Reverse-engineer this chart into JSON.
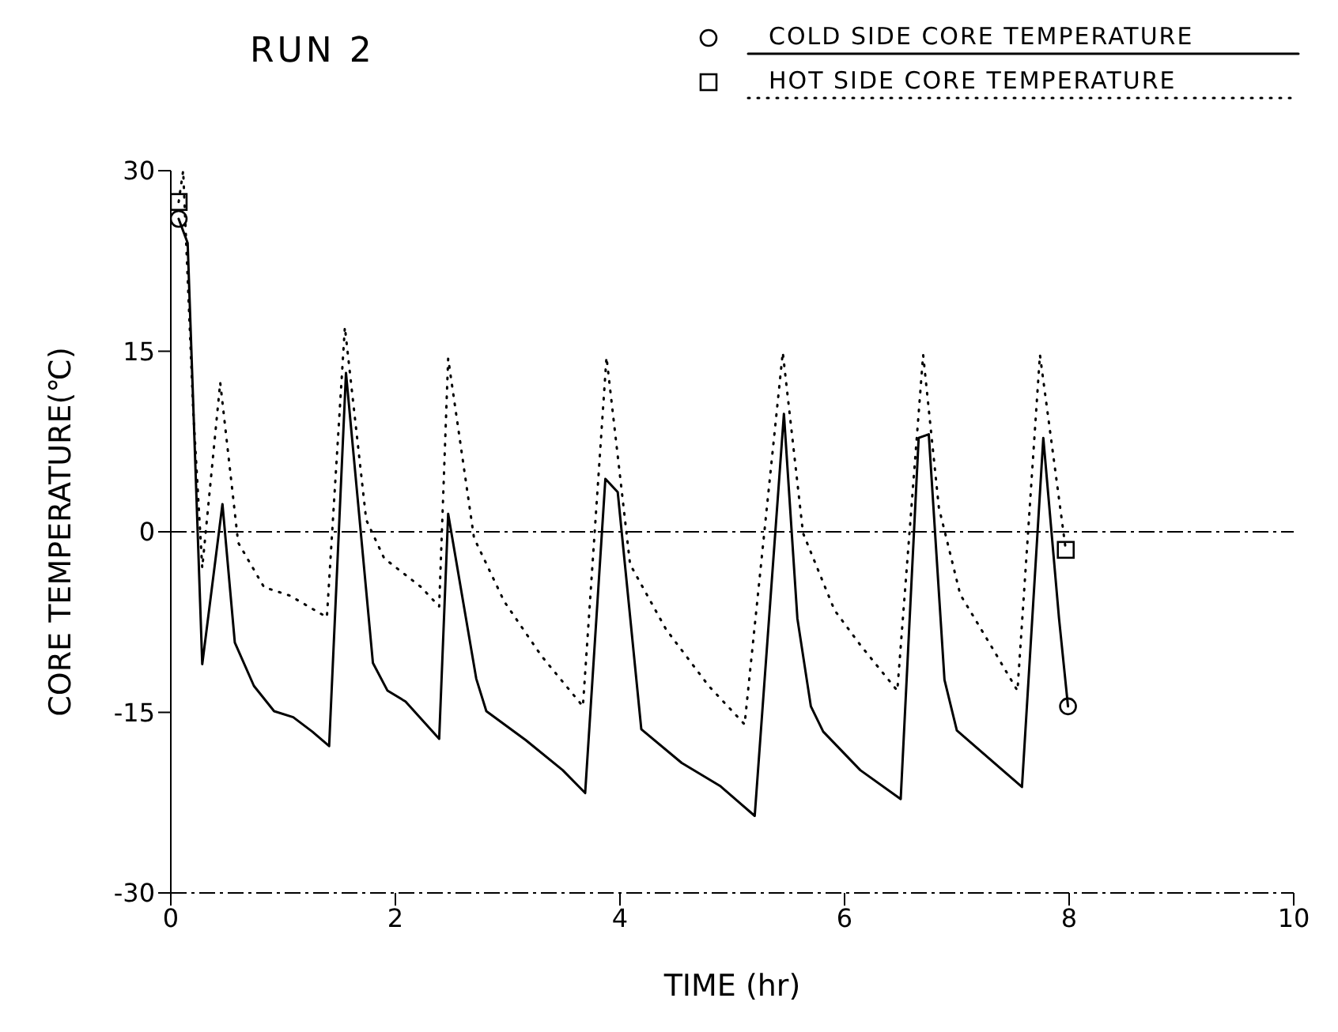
{
  "chart_data": {
    "type": "line",
    "title": "RUN 2",
    "xlabel": "TIME (hr)",
    "ylabel": "CORE TEMPERATURE(℃)",
    "xlim": [
      0,
      10
    ],
    "xticks": [
      0,
      2,
      4,
      6,
      8,
      10
    ],
    "ylim": [
      -30,
      30
    ],
    "yticks": [
      -30,
      -15,
      0,
      15,
      30
    ],
    "legend": "top right",
    "ref_lines": [
      {
        "axis": "y",
        "value": 0,
        "line_style": "dashed",
        "color": "#000000"
      }
    ],
    "series": [
      {
        "name": "COLD SIDE CORE TEMPERATURE",
        "color": "#000000",
        "line_style": "solid",
        "x": [
          0.07,
          0.15,
          0.28,
          0.46,
          0.57,
          0.74,
          0.92,
          1.09,
          1.26,
          1.41,
          1.56,
          1.8,
          1.93,
          2.09,
          2.39,
          2.47,
          2.72,
          2.81,
          3.16,
          3.49,
          3.69,
          3.87,
          3.98,
          4.19,
          4.55,
          4.89,
          5.2,
          5.46,
          5.58,
          5.7,
          5.81,
          6.14,
          6.5,
          6.66,
          6.75,
          6.89,
          7.0,
          7.58,
          7.77,
          7.91,
          7.99
        ],
        "values": [
          26,
          24,
          -11,
          2.3,
          -9.2,
          -12.8,
          -14.9,
          -15.4,
          -16.6,
          -17.8,
          13.2,
          -10.9,
          -13.2,
          -14.1,
          -17.2,
          1.5,
          -12.2,
          -14.9,
          -17.3,
          -19.8,
          -21.7,
          4.4,
          3.3,
          -16.4,
          -19.2,
          -21.1,
          -23.6,
          9.8,
          -7.2,
          -14.5,
          -16.6,
          -19.8,
          -22.2,
          7.8,
          8.1,
          -12.3,
          -16.5,
          -21.2,
          7.8,
          -7.2,
          -14.5
        ]
      },
      {
        "name": "HOT SIDE CORE TEMPERATURE",
        "color": "#000000",
        "line_style": "dotted",
        "x": [
          0.07,
          0.11,
          0.2,
          0.28,
          0.44,
          0.6,
          0.83,
          1.06,
          1.39,
          1.55,
          1.74,
          1.9,
          2.23,
          2.39,
          2.47,
          2.7,
          2.97,
          3.3,
          3.67,
          3.88,
          4.09,
          4.41,
          4.79,
          5.11,
          5.45,
          5.63,
          5.91,
          6.14,
          6.47,
          6.7,
          6.84,
          7.03,
          7.3,
          7.54,
          7.74,
          7.97
        ],
        "values": [
          27.4,
          30,
          10,
          -3,
          12.4,
          -0.9,
          -4.6,
          -5.3,
          -7.1,
          17,
          1,
          -2.2,
          -4.6,
          -6.2,
          14.4,
          -0.5,
          -5.8,
          -10.3,
          -14.5,
          14.5,
          -2.7,
          -8.1,
          -12.8,
          -16,
          14.9,
          -0.1,
          -6.5,
          -9.4,
          -13.2,
          14.7,
          2,
          -5.2,
          -9.4,
          -13.2,
          14.7,
          -1.5
        ]
      },
      {
        "type": "scatter",
        "color": "#000000",
        "marker": "circle",
        "x": [
          0.07,
          7.99
        ],
        "values": [
          26,
          -14.5
        ]
      },
      {
        "type": "scatter",
        "color": "#000000",
        "marker": "square",
        "x": [
          0.07,
          7.97
        ],
        "values": [
          27.4,
          -1.5
        ]
      }
    ]
  }
}
